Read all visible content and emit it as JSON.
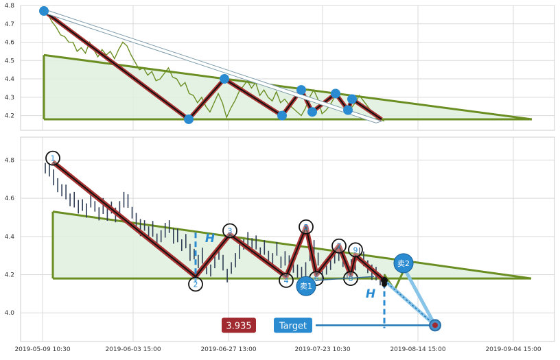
{
  "colors": {
    "price_line_top": "#6b8e23",
    "price_bar_bottom": "#2f3e56",
    "triangle_edge": "#6b8e23",
    "triangle_fill": "#dff0df",
    "zigzag_outer": "#a83232",
    "zigzag_inner": "#111111",
    "marker_blue": "#2a8bd1",
    "label_blue": "#2a8bd1",
    "target_bg": "#2a8bd1",
    "value_bg": "#a02a2f",
    "projection": "#1f77b4",
    "grid": "#d9d9d9"
  },
  "chart_data": [
    {
      "type": "line",
      "panel": "top",
      "grid": true,
      "ylim": [
        4.12,
        4.8
      ],
      "yticks": [
        "4.8",
        "4.7",
        "4.6",
        "4.5",
        "4.4",
        "4.3",
        "4.2"
      ],
      "series": [
        {
          "values": [
            4.76,
            4.75,
            4.71,
            4.68,
            4.64,
            4.63,
            4.6,
            4.6,
            4.55,
            4.57,
            4.54,
            4.6,
            4.56,
            4.52,
            4.56,
            4.53,
            4.55,
            4.51,
            4.56,
            4.6,
            4.58,
            4.53,
            4.49,
            4.45,
            4.46,
            4.42,
            4.44,
            4.39,
            4.4,
            4.43,
            4.46,
            4.41,
            4.4,
            4.36,
            4.38,
            4.32,
            4.31,
            4.27,
            4.3,
            4.25,
            4.22,
            4.27,
            4.32,
            4.27,
            4.19,
            4.24,
            4.28,
            4.33,
            4.36,
            4.39,
            4.35,
            4.38,
            4.31,
            4.34,
            4.3,
            4.28,
            4.33,
            4.27,
            4.29,
            4.26,
            4.24,
            4.22,
            4.2,
            4.24,
            4.3,
            4.34,
            4.29,
            4.21,
            4.23,
            4.26,
            4.3,
            4.32,
            4.27,
            4.22,
            4.24,
            4.27,
            4.31,
            4.28,
            4.25,
            4.22,
            4.2,
            4.18,
            4.17
          ]
        }
      ],
      "triangle": {
        "apex_y": 4.53,
        "base_y": 4.18,
        "end_y": 4.18
      },
      "zigzag_values": [
        4.77,
        4.18,
        4.4,
        4.2,
        4.34,
        4.22,
        4.32,
        4.23,
        4.29,
        4.18
      ],
      "pivot_markers": [
        4.77,
        4.18,
        4.4,
        4.2,
        4.34,
        4.22,
        4.32,
        4.23,
        4.29
      ]
    },
    {
      "type": "line",
      "panel": "bottom",
      "grid": true,
      "ylim": [
        3.85,
        4.92
      ],
      "yticks": [
        "4.8",
        "4.6",
        "4.4",
        "4.2",
        "4.0"
      ],
      "xticks": [
        "2019-05-09 10:30",
        "2019-06-03 15:00",
        "2019-06-27 13:00",
        "2019-07-23 10:30",
        "2019-08-14 15:00",
        "2019-09-04 15:00"
      ],
      "triangle": {
        "apex_y": 4.53,
        "base_y": 4.18,
        "end_y": 4.18
      },
      "pivots": [
        {
          "label": "1",
          "value": 4.81
        },
        {
          "label": "2",
          "value": 4.15
        },
        {
          "label": "3",
          "value": 4.43
        },
        {
          "label": "4",
          "value": 4.17
        },
        {
          "label": "5",
          "value": 4.45
        },
        {
          "label": "6",
          "value": 4.18
        },
        {
          "label": "7",
          "value": 4.35
        },
        {
          "label": "8",
          "value": 4.18
        },
        {
          "label": "9",
          "value": 4.33
        }
      ],
      "zigzag_values": [
        4.79,
        4.19,
        4.41,
        4.19,
        4.45,
        4.2,
        4.35,
        4.2,
        4.3,
        4.17
      ],
      "height_label": "H",
      "sell_signals": [
        {
          "label": "卖1",
          "value": 4.14
        },
        {
          "label": "卖2",
          "value": 4.26
        }
      ],
      "breakout_value": 4.17,
      "target_label": "Target",
      "target_value": "3.935",
      "target_price": 3.935
    }
  ]
}
